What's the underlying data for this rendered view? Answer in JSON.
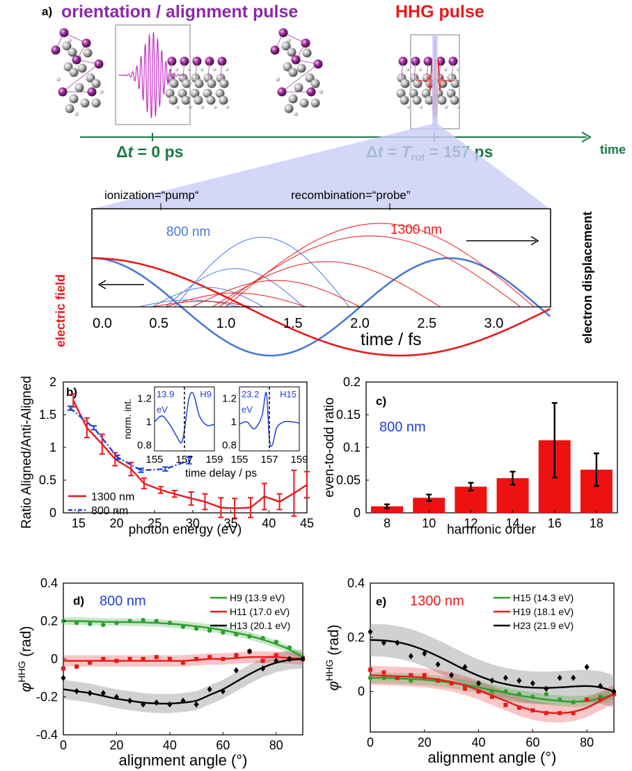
{
  "panel_a": {
    "label": "a)",
    "title_left": "orientation / alignment pulse",
    "title_right": "HHG pulse",
    "timeline_label": "time",
    "dt0_prefix": "Δ",
    "dt0_var": "t",
    "dt0_rest": " = 0 ps",
    "dt1_prefix": "Δ",
    "dt1_var": "t",
    "dt1_mid": " = ",
    "dt1_T": "T",
    "dt1_sub": "rot",
    "dt1_rest": " = 157 ps",
    "pump_label": "ionization=“pump“",
    "probe_label": "recombination=“probe”",
    "ylabel_left": "electric field",
    "ylabel_right": "electron displacement",
    "label_800": "800 nm",
    "label_1300": "1300 nm",
    "xlabel": "time / fs",
    "xticks": [
      "0.0",
      "0.5",
      "1.0",
      "1.5",
      "2.0",
      "2.5",
      "3.0"
    ],
    "colors": {
      "red": "#e8191c",
      "blue": "#4a78d6",
      "green": "#1a7a46",
      "purple": "#8a2aa8",
      "magenta": "#c41ec4"
    }
  },
  "chart_data": [
    {
      "id": "b",
      "type": "line",
      "panel_label": "b)",
      "xlabel": "photon energy (eV)",
      "ylabel": "Ratio Aligned/Anti-Aligned",
      "xlim": [
        13,
        45
      ],
      "ylim": [
        0,
        2
      ],
      "xticks": [
        15,
        20,
        25,
        30,
        35,
        40,
        45
      ],
      "yticks": [
        0,
        0.5,
        1,
        1.5,
        2
      ],
      "ytick_labels": [
        "0",
        "0.5",
        "1",
        "1.5",
        "2"
      ],
      "legend": "bottom-left",
      "series": [
        {
          "name": "1300 nm",
          "color": "#e8191c",
          "x": [
            14.3,
            16.1,
            18.1,
            19.8,
            21.9,
            23.6,
            25.8,
            27.6,
            29.8,
            31.6,
            33.7,
            35.5,
            37.6,
            39.4,
            41.4,
            43.3,
            45
          ],
          "y": [
            1.72,
            1.3,
            1.05,
            0.82,
            0.67,
            0.45,
            0.35,
            0.29,
            0.22,
            0.17,
            0.08,
            0.07,
            0.08,
            0.25,
            0.17,
            0.3,
            0.43
          ],
          "err": [
            0.1,
            0.15,
            0.15,
            0.1,
            0.1,
            0.08,
            0.05,
            0.05,
            0.1,
            0.12,
            0.15,
            0.15,
            0.15,
            0.2,
            0.12,
            0.35,
            0.2
          ]
        },
        {
          "name": "800 nm",
          "color": "#1f3fd8",
          "dash": true,
          "x": [
            13.9,
            17.0,
            20.1,
            23.2,
            26.4,
            29.5
          ],
          "y": [
            1.6,
            1.3,
            0.85,
            0.65,
            0.67,
            0.8
          ],
          "err": [
            0.03,
            0.03,
            0.03,
            0.03,
            0.03,
            0.05
          ]
        }
      ],
      "insets": [
        {
          "ann": "13.9",
          "ann2": "eV",
          "harmonic": "H9",
          "ylabel": "norm. int.",
          "xticks": [
            "155",
            "157",
            "159"
          ],
          "yticks": [
            "0.8",
            "1",
            "1.2"
          ],
          "x": [
            155,
            155.5,
            156,
            156.5,
            156.8,
            157.0,
            157.3,
            157.6,
            158.0,
            158.5,
            159
          ],
          "y": [
            1.0,
            1.05,
            0.98,
            0.87,
            0.82,
            0.93,
            1.2,
            1.24,
            1.05,
            0.97,
            0.98
          ]
        },
        {
          "ann": "23.2",
          "ann2": "eV",
          "harmonic": "H15",
          "xticks": [
            "155",
            "157",
            "159"
          ],
          "yticks": [
            "0.8",
            "1",
            "1.2"
          ],
          "x": [
            155,
            155.5,
            156,
            156.5,
            156.8,
            157.0,
            157.2,
            157.5,
            158.0,
            158.5,
            159
          ],
          "y": [
            0.98,
            1.0,
            0.94,
            1.05,
            1.25,
            0.85,
            0.8,
            0.95,
            1.0,
            1.0,
            0.99
          ]
        }
      ],
      "inset_xlabel": "time delay / ps"
    },
    {
      "id": "c",
      "type": "bar",
      "panel_label": "c)",
      "annotation": "800 nm",
      "xlabel": "harmonic order",
      "ylabel": "even-to-odd ratio",
      "categories": [
        "8",
        "10",
        "12",
        "14",
        "16",
        "18"
      ],
      "values": [
        0.01,
        0.023,
        0.04,
        0.053,
        0.111,
        0.066
      ],
      "err": [
        0.003,
        0.005,
        0.006,
        0.01,
        0.057,
        0.025
      ],
      "ylim": [
        0,
        0.2
      ],
      "yticks": [
        0,
        0.05,
        0.1,
        0.15,
        0.2
      ],
      "ytick_labels": [
        "0",
        "0.05",
        "0.1",
        "0.15",
        "0.2"
      ],
      "color": "#ee1111"
    },
    {
      "id": "d",
      "type": "scatter",
      "panel_label": "d)",
      "annotation": "800 nm",
      "xlabel": "alignment angle (°)",
      "ylabel_main": "φ",
      "ylabel_sup": "HHG",
      "ylabel_unit": " (rad)",
      "xlim": [
        0,
        90
      ],
      "ylim": [
        -0.4,
        0.4
      ],
      "xticks": [
        0,
        20,
        40,
        60,
        80
      ],
      "yticks": [
        -0.4,
        -0.2,
        0,
        0.2,
        0.4
      ],
      "ytick_labels": [
        "-0.4",
        "-0.2",
        "0",
        "0.2",
        "0.4"
      ],
      "legend": "top-right",
      "series": [
        {
          "name": "H9 (13.9 eV)",
          "color": "#2ca02c",
          "marker": "circle",
          "x": [
            0,
            5,
            10,
            15,
            20,
            25,
            30,
            35,
            40,
            45,
            50,
            55,
            60,
            65,
            70,
            75,
            80,
            85,
            90
          ],
          "y": [
            0.2,
            0.19,
            0.185,
            0.18,
            0.19,
            0.2,
            0.205,
            0.2,
            0.19,
            0.17,
            0.16,
            0.15,
            0.14,
            0.13,
            0.12,
            0.11,
            0.09,
            0.06,
            0.01
          ],
          "fit": [
            0.2,
            0.2,
            0.198,
            0.196,
            0.195,
            0.194,
            0.193,
            0.19,
            0.186,
            0.18,
            0.172,
            0.163,
            0.152,
            0.138,
            0.122,
            0.102,
            0.078,
            0.05,
            0.01
          ],
          "band": 0.02
        },
        {
          "name": "H11 (17.0 eV)",
          "color": "#e8191c",
          "marker": "square",
          "x": [
            0,
            5,
            10,
            15,
            20,
            25,
            30,
            35,
            40,
            45,
            50,
            55,
            60,
            65,
            70,
            75,
            80,
            85,
            90
          ],
          "y": [
            -0.05,
            -0.04,
            -0.02,
            0.0,
            -0.01,
            0.0,
            0.0,
            0.01,
            0.0,
            -0.02,
            0.0,
            0.01,
            0.0,
            0.02,
            0.04,
            -0.01,
            0.02,
            0.0,
            0.0
          ],
          "fit": [
            -0.01,
            -0.01,
            -0.01,
            -0.01,
            -0.01,
            -0.01,
            -0.01,
            -0.01,
            -0.01,
            -0.01,
            -0.005,
            0.0,
            0.0,
            0.005,
            0.01,
            0.01,
            0.01,
            0.005,
            0.0
          ],
          "band": 0.03
        },
        {
          "name": "H13 (20.1 eV)",
          "color": "#000000",
          "marker": "diamond",
          "x": [
            0,
            5,
            10,
            15,
            20,
            25,
            30,
            35,
            40,
            45,
            50,
            55,
            60,
            65,
            70,
            75,
            80,
            85,
            90
          ],
          "y": [
            -0.1,
            -0.17,
            -0.18,
            -0.18,
            -0.2,
            -0.22,
            -0.24,
            -0.23,
            -0.24,
            -0.22,
            -0.24,
            -0.16,
            -0.17,
            -0.06,
            0.04,
            -0.05,
            -0.01,
            0.0,
            0.0
          ],
          "fit": [
            -0.16,
            -0.17,
            -0.18,
            -0.195,
            -0.21,
            -0.22,
            -0.23,
            -0.235,
            -0.235,
            -0.23,
            -0.22,
            -0.19,
            -0.16,
            -0.12,
            -0.08,
            -0.045,
            -0.02,
            -0.005,
            0.0
          ],
          "band": 0.05
        }
      ]
    },
    {
      "id": "e",
      "type": "scatter",
      "panel_label": "e)",
      "annotation": "1300 nm",
      "xlabel": "alignment angle (°)",
      "ylabel_main": "φ",
      "ylabel_sup": "HHG",
      "ylabel_unit": " (rad)",
      "xlim": [
        0,
        90
      ],
      "ylim": [
        -0.15,
        0.4
      ],
      "xticks": [
        0,
        20,
        40,
        60,
        80
      ],
      "yticks": [
        0,
        0.2,
        0.4
      ],
      "ytick_labels": [
        "0",
        "0.2",
        "0.4"
      ],
      "legend": "top-right",
      "series": [
        {
          "name": "H15 (14.3 eV)",
          "color": "#2ca02c",
          "marker": "circle",
          "x": [
            0,
            5,
            10,
            15,
            20,
            25,
            30,
            35,
            40,
            45,
            50,
            55,
            60,
            65,
            70,
            75,
            80,
            85,
            90
          ],
          "y": [
            0.05,
            0.05,
            0.05,
            0.04,
            0.05,
            0.04,
            0.03,
            0.02,
            0.03,
            0.0,
            0.0,
            -0.01,
            -0.02,
            -0.01,
            -0.03,
            -0.04,
            -0.03,
            -0.02,
            -0.01
          ],
          "fit": [
            0.05,
            0.05,
            0.048,
            0.046,
            0.043,
            0.038,
            0.032,
            0.024,
            0.015,
            0.005,
            -0.005,
            -0.015,
            -0.023,
            -0.03,
            -0.035,
            -0.038,
            -0.035,
            -0.025,
            -0.01
          ],
          "band": 0.02
        },
        {
          "name": "H19 (18.1 eV)",
          "color": "#e8191c",
          "marker": "square",
          "x": [
            0,
            5,
            10,
            15,
            20,
            25,
            30,
            35,
            40,
            45,
            50,
            55,
            60,
            65,
            70,
            75,
            80,
            85,
            90
          ],
          "y": [
            0.08,
            0.07,
            0.05,
            0.06,
            0.06,
            0.04,
            0.03,
            0.01,
            0.0,
            -0.02,
            -0.05,
            -0.06,
            -0.07,
            -0.08,
            -0.08,
            -0.08,
            -0.03,
            -0.03,
            -0.01
          ],
          "fit": [
            0.06,
            0.058,
            0.056,
            0.054,
            0.05,
            0.044,
            0.035,
            0.022,
            0.005,
            -0.015,
            -0.035,
            -0.055,
            -0.07,
            -0.078,
            -0.08,
            -0.075,
            -0.06,
            -0.035,
            -0.01
          ],
          "band": 0.035
        },
        {
          "name": "H23 (21.9 eV)",
          "color": "#000000",
          "marker": "diamond",
          "x": [
            0,
            5,
            10,
            15,
            20,
            25,
            30,
            35,
            40,
            45,
            50,
            55,
            60,
            65,
            70,
            75,
            80,
            85,
            90
          ],
          "y": [
            0.22,
            0.18,
            0.18,
            0.13,
            0.14,
            0.1,
            0.06,
            0.09,
            0.03,
            0.04,
            0.05,
            0.04,
            0.03,
            0.01,
            0.05,
            0.05,
            0.09,
            0.02,
            0.0
          ],
          "fit": [
            0.19,
            0.188,
            0.182,
            0.17,
            0.152,
            0.13,
            0.105,
            0.08,
            0.058,
            0.04,
            0.027,
            0.018,
            0.014,
            0.013,
            0.015,
            0.018,
            0.02,
            0.015,
            0.0
          ],
          "band": 0.06
        }
      ]
    }
  ]
}
